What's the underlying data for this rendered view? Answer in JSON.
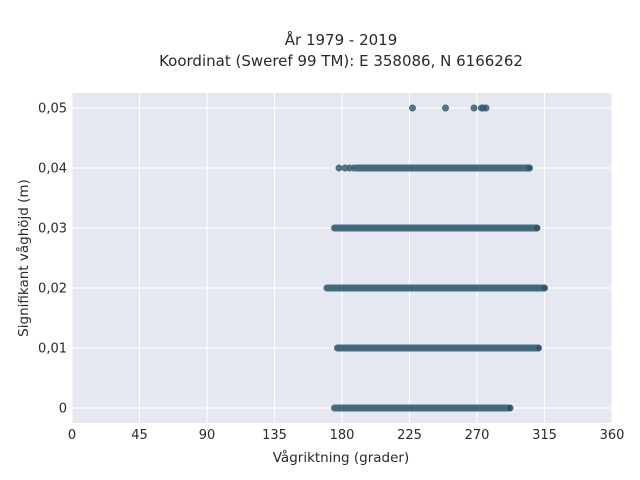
{
  "chart_data": {
    "type": "scatter",
    "title_lines": [
      "År 1979 - 2019",
      "Koordinat (Sweref 99 TM): E 358086, N 6166262"
    ],
    "xlabel": "Vågriktning (grader)",
    "ylabel": "Signifikant våghöjd (m)",
    "xlim": [
      0,
      360
    ],
    "ylim": [
      -0.0025,
      0.0525
    ],
    "x_ticks": [
      0,
      45,
      90,
      135,
      180,
      225,
      270,
      315,
      360
    ],
    "x_tick_labels": [
      "0",
      "45",
      "90",
      "135",
      "180",
      "225",
      "270",
      "315",
      "360"
    ],
    "y_ticks": [
      0,
      0.01,
      0.02,
      0.03,
      0.04,
      0.05
    ],
    "y_tick_labels": [
      "0",
      "0,01",
      "0,02",
      "0,03",
      "0,04",
      "0,05"
    ],
    "grid": true,
    "marker_color": "#2f5468",
    "background_color": "#e6e8f1",
    "series": [
      {
        "levels": [
          {
            "y": 0.0,
            "x_min": 175,
            "x_max": 292,
            "sparse_x": []
          },
          {
            "y": 0.01,
            "x_min": 177,
            "x_max": 311,
            "sparse_x": []
          },
          {
            "y": 0.02,
            "x_min": 170,
            "x_max": 315,
            "sparse_x": []
          },
          {
            "y": 0.03,
            "x_min": 175,
            "x_max": 310,
            "sparse_x": []
          },
          {
            "y": 0.04,
            "x_min": 178,
            "x_max": 305,
            "sparse_x": [
              178,
              182,
              185,
              188,
              190
            ]
          },
          {
            "y": 0.05,
            "x_min": 227,
            "x_max": 276,
            "sparse_x": [
              227,
              249,
              268,
              273,
              274,
              276
            ]
          }
        ]
      }
    ]
  }
}
